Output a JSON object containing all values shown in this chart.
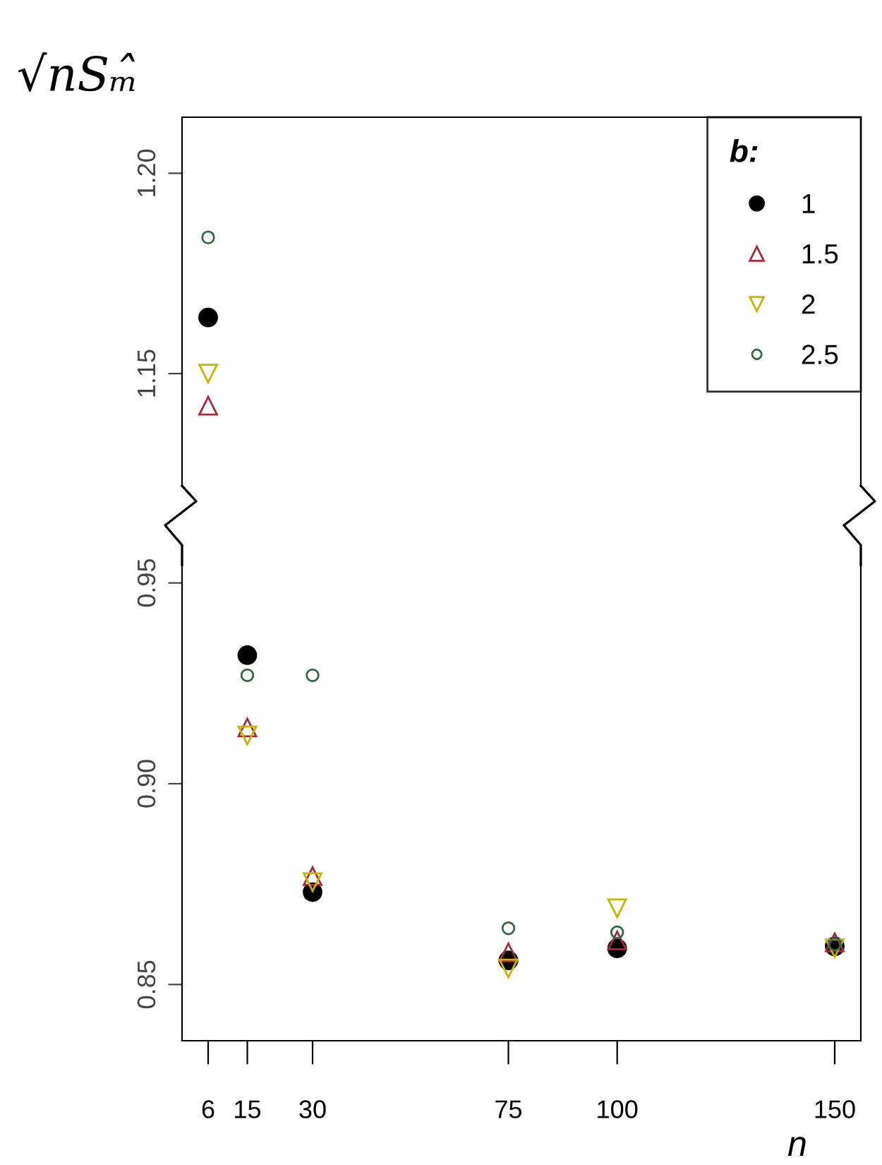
{
  "chart_data": [
    {
      "type": "scatter",
      "ylabel": "√nSₘ̂",
      "legend_title": "b:",
      "legend": "top right",
      "tick_labels": "y",
      "x": [
        6
      ],
      "xlim": [
        0,
        156
      ],
      "ylim": [
        1.122,
        1.214
      ],
      "yticks": [
        1.15,
        {
          "value": 1.2,
          "label": "1.20"
        }
      ],
      "grid": false,
      "series": [
        {
          "name": "1",
          "color": "#000000",
          "marker": "circle",
          "values": [
            1.164
          ]
        },
        {
          "name": "1.5",
          "color": "#a52a3a",
          "marker": "triangle",
          "values": [
            1.142
          ]
        },
        {
          "name": "2",
          "color": "#c8b400",
          "marker": "triangle-down",
          "values": [
            1.15
          ]
        },
        {
          "name": "2.5",
          "color": "#2e6b3e",
          "marker": "circle-open",
          "values": [
            1.184
          ]
        }
      ]
    },
    {
      "type": "scatter",
      "xlabel": "n",
      "x": [
        15,
        30,
        75,
        100,
        150
      ],
      "xlim": [
        0,
        156
      ],
      "xticks": [
        6,
        15,
        30,
        75,
        100,
        150
      ],
      "ylim": [
        0.836,
        0.9545
      ],
      "yticks": [
        0.85,
        {
          "value": 0.9,
          "label": "0.90"
        },
        0.95
      ],
      "grid": false,
      "series": [
        {
          "color": "#000000",
          "marker": "circle",
          "values": [
            0.932,
            0.873,
            0.856,
            0.859,
            0.8595
          ]
        },
        {
          "color": "#a52a3a",
          "marker": "triangle",
          "values": [
            0.914,
            0.877,
            0.858,
            0.861,
            0.8605
          ]
        },
        {
          "color": "#c8b400",
          "marker": "triangle-down",
          "values": [
            0.912,
            0.8755,
            0.854,
            0.869,
            0.859
          ]
        },
        {
          "color": "#2e6b3e",
          "marker": "circle-open",
          "values": [
            0.927,
            0.927,
            0.864,
            0.863,
            0.86
          ]
        }
      ]
    }
  ]
}
